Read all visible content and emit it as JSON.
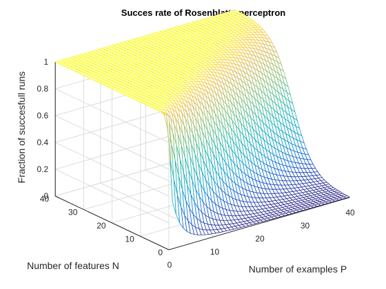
{
  "chart_data": {
    "type": "mesh",
    "title": "Succes rate of Rosenblatts perceptron",
    "xlabel": "Number of examples P",
    "ylabel": "Number of features N",
    "zlabel": "Fraction of succesfull runs",
    "x_ticks": [
      0,
      10,
      20,
      30,
      40
    ],
    "y_ticks": [
      0,
      10,
      20,
      30,
      40
    ],
    "z_ticks": [
      0,
      0.2,
      0.4,
      0.6,
      0.8,
      1
    ],
    "xlim": [
      0,
      40
    ],
    "ylim": [
      0,
      40
    ],
    "zlim": [
      0,
      1
    ],
    "grid": true,
    "colormap": "parula",
    "surface_description": "z ≈ 1 when N > P/2, 0 when N < P/2, sigmoid transition along N = P/2",
    "transition_ratio_N_over_P": 0.5
  }
}
